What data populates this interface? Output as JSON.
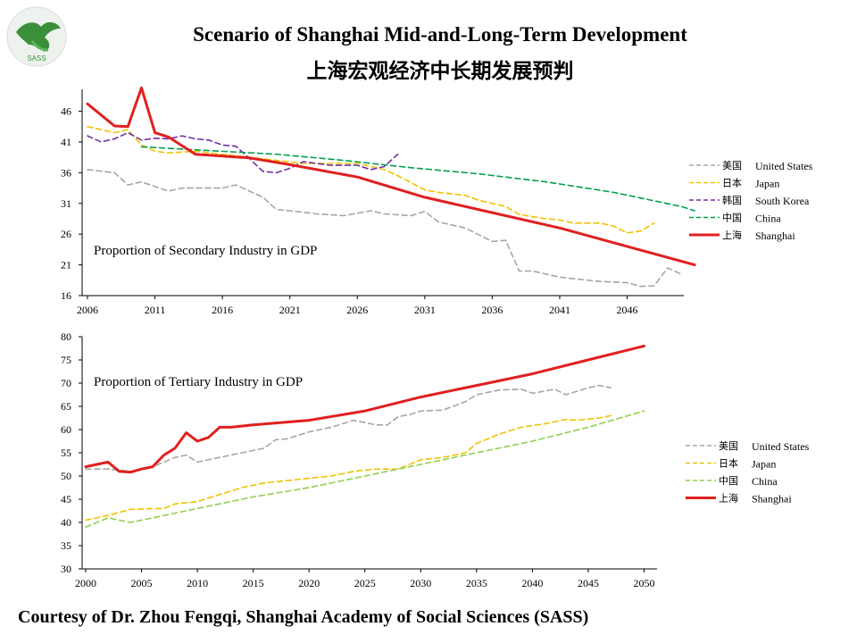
{
  "header": {
    "title_en": "Scenario of Shanghai Mid-and-Long-Term Development",
    "title_zh": "上海宏观经济中长期发展预判",
    "logo_text": "SASS"
  },
  "footer": {
    "credit": "Courtesy of Dr. Zhou Fengqi, Shanghai Academy of Social Sciences (SASS)"
  },
  "colors": {
    "united_states": "#a6a6a6",
    "japan": "#f2c200",
    "south_korea": "#7030a0",
    "china_secondary": "#00a050",
    "china_tertiary": "#92d050",
    "shanghai": "#e02020"
  },
  "chart_data": [
    {
      "type": "line",
      "annotation": "Proportion of Secondary Industry in GDP",
      "x_ticks": [
        2006,
        2011,
        2016,
        2021,
        2026,
        2031,
        2036,
        2041,
        2046
      ],
      "y_ticks": [
        16,
        21,
        26,
        31,
        36,
        41,
        46
      ],
      "xlim": [
        2006,
        2050
      ],
      "ylim": [
        16,
        50
      ],
      "grid": false,
      "legend_position": "right",
      "series": [
        {
          "name": "United States",
          "name_zh": "美国",
          "style": "dashed",
          "color_key": "united_states",
          "points": [
            [
              2006,
              36.5
            ],
            [
              2008,
              36
            ],
            [
              2009,
              34
            ],
            [
              2010,
              34.5
            ],
            [
              2012,
              33
            ],
            [
              2013,
              33.5
            ],
            [
              2016,
              33.5
            ],
            [
              2017,
              34
            ],
            [
              2019,
              32
            ],
            [
              2020,
              30
            ],
            [
              2021,
              29.8
            ],
            [
              2023,
              29.3
            ],
            [
              2025,
              29
            ],
            [
              2027,
              29.8
            ],
            [
              2028,
              29.3
            ],
            [
              2030,
              29
            ],
            [
              2031,
              29.7
            ],
            [
              2032,
              28
            ],
            [
              2033,
              27.5
            ],
            [
              2034,
              27
            ],
            [
              2036,
              24.8
            ],
            [
              2037,
              25
            ],
            [
              2038,
              20
            ],
            [
              2039,
              20
            ],
            [
              2041,
              19
            ],
            [
              2044,
              18.3
            ],
            [
              2046,
              18.1
            ],
            [
              2047,
              17.5
            ],
            [
              2048,
              17.6
            ],
            [
              2049,
              20.5
            ],
            [
              2050,
              19.5
            ]
          ]
        },
        {
          "name": "Japan",
          "name_zh": "日本",
          "style": "dashed",
          "color_key": "japan",
          "points": [
            [
              2006,
              43.5
            ],
            [
              2008,
              42.5
            ],
            [
              2009,
              43
            ],
            [
              2010,
              40.5
            ],
            [
              2011,
              39.5
            ],
            [
              2012,
              39.2
            ],
            [
              2014,
              39.5
            ],
            [
              2016,
              39
            ],
            [
              2018,
              38.5
            ],
            [
              2020,
              38
            ],
            [
              2022,
              37.5
            ],
            [
              2024,
              37.5
            ],
            [
              2026,
              37.5
            ],
            [
              2028,
              36.5
            ],
            [
              2029,
              35.5
            ],
            [
              2031,
              33.2
            ],
            [
              2032,
              32.8
            ],
            [
              2034,
              32.3
            ],
            [
              2035,
              31.5
            ],
            [
              2037,
              30.5
            ],
            [
              2038,
              29.2
            ],
            [
              2040,
              28.5
            ],
            [
              2041,
              28.3
            ],
            [
              2042,
              27.8
            ],
            [
              2044,
              27.8
            ],
            [
              2045,
              27.3
            ],
            [
              2046,
              26.2
            ],
            [
              2047,
              26.5
            ],
            [
              2048,
              27.8
            ]
          ]
        },
        {
          "name": "South Korea",
          "name_zh": "韩国",
          "style": "dashed",
          "color_key": "south_korea",
          "points": [
            [
              2006,
              42
            ],
            [
              2007,
              41
            ],
            [
              2008,
              41.5
            ],
            [
              2009,
              42.5
            ],
            [
              2010,
              41.3
            ],
            [
              2011,
              41.6
            ],
            [
              2012,
              41.5
            ],
            [
              2013,
              42
            ],
            [
              2014,
              41.5
            ],
            [
              2015,
              41.3
            ],
            [
              2016,
              40.5
            ],
            [
              2017,
              40.3
            ],
            [
              2018,
              38.3
            ],
            [
              2019,
              36.2
            ],
            [
              2020,
              36
            ],
            [
              2021,
              36.7
            ],
            [
              2022,
              37.8
            ],
            [
              2024,
              37.2
            ],
            [
              2026,
              37.2
            ],
            [
              2027,
              36.5
            ],
            [
              2028,
              37
            ],
            [
              2029,
              39
            ]
          ]
        },
        {
          "name": "China",
          "name_zh": "中国",
          "style": "dashed",
          "color_key": "china_secondary",
          "points": [
            [
              2010,
              40.2
            ],
            [
              2015,
              39.6
            ],
            [
              2020,
              39
            ],
            [
              2025,
              38
            ],
            [
              2030,
              36.8
            ],
            [
              2035,
              35.8
            ],
            [
              2040,
              34.5
            ],
            [
              2045,
              32.8
            ],
            [
              2050,
              30.5
            ],
            [
              2051,
              29.8
            ]
          ]
        },
        {
          "name": "Shanghai",
          "name_zh": "上海",
          "style": "solid",
          "color_key": "shanghai",
          "points": [
            [
              2006,
              47.2
            ],
            [
              2008,
              43.6
            ],
            [
              2009,
              43.5
            ],
            [
              2010,
              49.8
            ],
            [
              2011,
              42.5
            ],
            [
              2012,
              41.8
            ],
            [
              2013,
              40.4
            ],
            [
              2014,
              39
            ],
            [
              2016,
              38.7
            ],
            [
              2018,
              38.4
            ],
            [
              2021,
              37.3
            ],
            [
              2026,
              35.3
            ],
            [
              2031,
              32
            ],
            [
              2036,
              29.5
            ],
            [
              2041,
              27
            ],
            [
              2046,
              24
            ],
            [
              2051,
              21
            ]
          ]
        }
      ]
    },
    {
      "type": "line",
      "annotation": "Proportion of Tertiary Industry in GDP",
      "x_ticks": [
        2000,
        2005,
        2010,
        2015,
        2020,
        2025,
        2030,
        2035,
        2040,
        2045,
        2050
      ],
      "y_ticks": [
        30,
        35,
        40,
        45,
        50,
        55,
        60,
        65,
        70,
        75,
        80
      ],
      "xlim": [
        2000,
        2051
      ],
      "ylim": [
        30,
        80
      ],
      "grid": false,
      "legend_position": "right",
      "series": [
        {
          "name": "United States",
          "name_zh": "美国",
          "style": "dashed",
          "color_key": "united_states",
          "points": [
            [
              2000,
              51.5
            ],
            [
              2002,
              51.5
            ],
            [
              2004,
              51
            ],
            [
              2006,
              52
            ],
            [
              2008,
              54
            ],
            [
              2009,
              54.5
            ],
            [
              2010,
              53
            ],
            [
              2012,
              54
            ],
            [
              2014,
              55
            ],
            [
              2016,
              56
            ],
            [
              2017,
              57.8
            ],
            [
              2018,
              58
            ],
            [
              2020,
              59.5
            ],
            [
              2022,
              60.5
            ],
            [
              2024,
              62
            ],
            [
              2026,
              61
            ],
            [
              2027,
              61
            ],
            [
              2028,
              62.8
            ],
            [
              2029,
              63.2
            ],
            [
              2030,
              64
            ],
            [
              2032,
              64.2
            ],
            [
              2034,
              66
            ],
            [
              2035,
              67.5
            ],
            [
              2037,
              68.5
            ],
            [
              2039,
              68.7
            ],
            [
              2040,
              67.8
            ],
            [
              2042,
              68.7
            ],
            [
              2043,
              67.5
            ],
            [
              2045,
              69
            ],
            [
              2046,
              69.5
            ],
            [
              2047,
              69
            ]
          ]
        },
        {
          "name": "Japan",
          "name_zh": "日本",
          "style": "dashed",
          "color_key": "japan",
          "points": [
            [
              2000,
              40.5
            ],
            [
              2002,
              41.5
            ],
            [
              2004,
              42.8
            ],
            [
              2006,
              43
            ],
            [
              2007,
              43
            ],
            [
              2008,
              44
            ],
            [
              2010,
              44.5
            ],
            [
              2012,
              46
            ],
            [
              2014,
              47.5
            ],
            [
              2016,
              48.5
            ],
            [
              2018,
              49
            ],
            [
              2020,
              49.5
            ],
            [
              2022,
              50
            ],
            [
              2024,
              51
            ],
            [
              2026,
              51.5
            ],
            [
              2028,
              51.5
            ],
            [
              2030,
              53.5
            ],
            [
              2032,
              54
            ],
            [
              2034,
              55
            ],
            [
              2035,
              57
            ],
            [
              2037,
              59
            ],
            [
              2039,
              60.5
            ],
            [
              2041,
              61.2
            ],
            [
              2043,
              62.2
            ],
            [
              2044,
              62
            ],
            [
              2046,
              62.5
            ],
            [
              2047,
              63
            ]
          ]
        },
        {
          "name": "China",
          "name_zh": "中国",
          "style": "dashed",
          "color_key": "china_tertiary",
          "points": [
            [
              2000,
              39
            ],
            [
              2002,
              41
            ],
            [
              2004,
              40
            ],
            [
              2006,
              41
            ],
            [
              2010,
              43
            ],
            [
              2015,
              45.5
            ],
            [
              2020,
              47.5
            ],
            [
              2025,
              50
            ],
            [
              2030,
              52.5
            ],
            [
              2035,
              55
            ],
            [
              2040,
              57.5
            ],
            [
              2045,
              60.5
            ],
            [
              2050,
              64
            ]
          ]
        },
        {
          "name": "Shanghai",
          "name_zh": "上海",
          "style": "solid",
          "color_key": "shanghai",
          "points": [
            [
              2000,
              52
            ],
            [
              2002,
              53
            ],
            [
              2003,
              51
            ],
            [
              2004,
              50.8
            ],
            [
              2005,
              51.5
            ],
            [
              2006,
              52
            ],
            [
              2007,
              54.5
            ],
            [
              2008,
              56
            ],
            [
              2009,
              59.3
            ],
            [
              2010,
              57.5
            ],
            [
              2011,
              58.3
            ],
            [
              2012,
              60.5
            ],
            [
              2013,
              60.5
            ],
            [
              2015,
              61
            ],
            [
              2020,
              62
            ],
            [
              2025,
              64
            ],
            [
              2030,
              67
            ],
            [
              2035,
              69.5
            ],
            [
              2040,
              72
            ],
            [
              2045,
              75
            ],
            [
              2050,
              78
            ]
          ]
        }
      ]
    }
  ]
}
